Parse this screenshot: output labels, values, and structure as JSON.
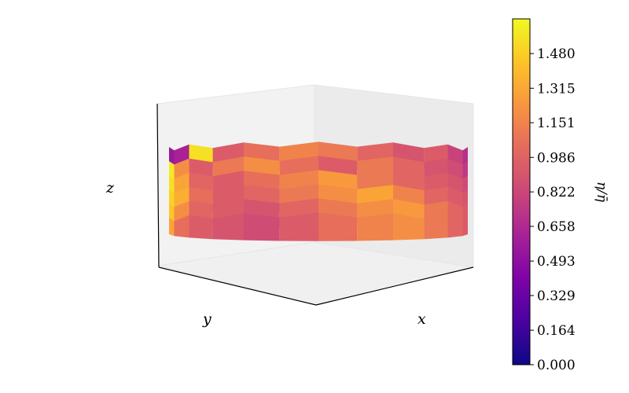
{
  "chart_data": {
    "type": "surface3d",
    "title": "",
    "xlabel": "x",
    "ylabel": "y",
    "zlabel": "z",
    "colorbar": {
      "label": "η/η̄",
      "colormap": "plasma",
      "min": 0.0,
      "max": 1.645,
      "ticks": [
        "0.000",
        "0.164",
        "0.329",
        "0.493",
        "0.658",
        "0.822",
        "0.986",
        "1.151",
        "1.315",
        "1.480"
      ]
    },
    "layers": [
      {
        "name": "",
        "values": [
          0.55,
          0.62,
          1.55,
          0.95,
          1.05,
          1.15,
          1.1,
          1.0,
          0.9,
          0.95,
          0.8,
          0.7
        ]
      },
      {
        "name": "",
        "values": [
          1.6,
          1.2,
          0.95,
          1.1,
          1.2,
          1.05,
          0.95,
          1.1,
          1.0,
          0.9,
          0.85,
          0.75
        ]
      },
      {
        "name": "",
        "values": [
          1.55,
          1.3,
          1.0,
          0.95,
          1.05,
          1.15,
          1.25,
          1.1,
          1.0,
          0.95,
          0.9,
          0.85
        ]
      },
      {
        "name": "",
        "values": [
          1.5,
          1.35,
          1.05,
          0.95,
          1.0,
          1.1,
          1.2,
          1.3,
          1.15,
          1.0,
          0.95,
          0.9
        ]
      },
      {
        "name": "",
        "values": [
          1.45,
          1.2,
          1.0,
          0.95,
          0.9,
          1.0,
          1.1,
          1.2,
          1.25,
          1.1,
          1.0,
          0.95
        ]
      },
      {
        "name": "",
        "values": [
          1.3,
          1.05,
          0.95,
          0.9,
          0.85,
          0.95,
          1.05,
          1.15,
          1.2,
          1.1,
          1.0,
          0.95
        ]
      }
    ],
    "grid": false,
    "legend": "none"
  }
}
